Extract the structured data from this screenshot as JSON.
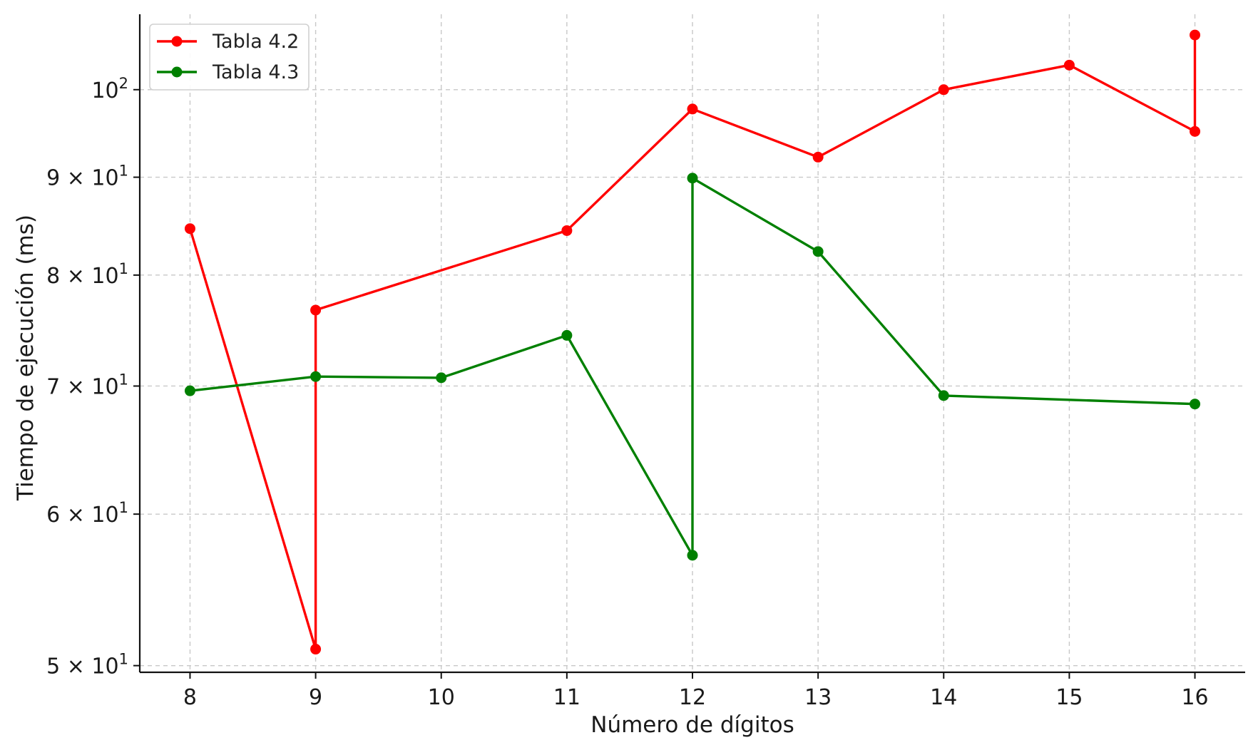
{
  "chart_data": {
    "type": "line",
    "title": "",
    "xlabel": "Número de dígitos",
    "ylabel": "Tiempo de ejecución (ms)",
    "xlim": [
      7.6,
      16.4
    ],
    "ylim": [
      49.6,
      109.5
    ],
    "yscale": "log",
    "grid": true,
    "legend_position": "top-left",
    "x_ticks": [
      8,
      9,
      10,
      11,
      12,
      13,
      14,
      15,
      16
    ],
    "y_ticks": [
      {
        "value": 50,
        "mantissa": "5",
        "exp": "1",
        "label": "5 × 10^1"
      },
      {
        "value": 60,
        "mantissa": "6",
        "exp": "1",
        "label": "6 × 10^1"
      },
      {
        "value": 70,
        "mantissa": "7",
        "exp": "1",
        "label": "7 × 10^1"
      },
      {
        "value": 80,
        "mantissa": "8",
        "exp": "1",
        "label": "8 × 10^1"
      },
      {
        "value": 90,
        "mantissa": "9",
        "exp": "1",
        "label": "9 × 10^1"
      },
      {
        "value": 100,
        "mantissa": "",
        "exp": "2",
        "label": "10^2"
      }
    ],
    "series": [
      {
        "name": "Tabla 4.2",
        "color": "#ff0000",
        "points": [
          [
            8,
            84.6
          ],
          [
            9,
            51.0
          ],
          [
            9,
            76.7
          ],
          [
            11,
            84.4
          ],
          [
            12,
            97.7
          ],
          [
            13,
            92.2
          ],
          [
            14,
            100.0
          ],
          [
            15,
            103.0
          ],
          [
            16,
            95.1
          ],
          [
            16,
            106.8
          ]
        ]
      },
      {
        "name": "Tabla 4.3",
        "color": "#008000",
        "points": [
          [
            8,
            69.6
          ],
          [
            9,
            70.8
          ],
          [
            10,
            70.7
          ],
          [
            11,
            74.4
          ],
          [
            12,
            57.1
          ],
          [
            12,
            89.9
          ],
          [
            13,
            82.3
          ],
          [
            14,
            69.2
          ],
          [
            16,
            68.5
          ]
        ]
      }
    ]
  }
}
